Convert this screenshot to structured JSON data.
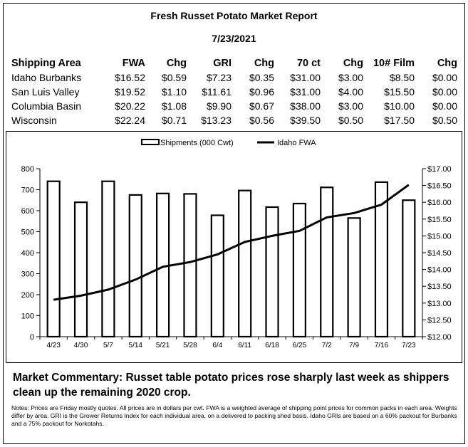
{
  "header": {
    "title": "Fresh Russet Potato Market Report",
    "date": "7/23/2021"
  },
  "price_table": {
    "columns": [
      "Shipping Area",
      "FWA",
      "Chg",
      "GRI",
      "Chg",
      "70 ct",
      "Chg",
      "10# Film",
      "Chg"
    ],
    "rows": [
      [
        "Idaho Burbanks",
        "$16.52",
        "$0.59",
        "$7.23",
        "$0.35",
        "$31.00",
        "$3.00",
        "$8.50",
        "$0.00"
      ],
      [
        "San Luis Valley",
        "$19.52",
        "$1.10",
        "$11.61",
        "$0.96",
        "$31.00",
        "$4.00",
        "$15.50",
        "$0.00"
      ],
      [
        "Columbia Basin",
        "$20.22",
        "$1.08",
        "$9.90",
        "$0.67",
        "$38.00",
        "$3.00",
        "$10.00",
        "$0.00"
      ],
      [
        "Wisconsin",
        "$22.24",
        "$0.71",
        "$13.23",
        "$0.56",
        "$39.50",
        "$0.50",
        "$17.50",
        "$0.50"
      ]
    ]
  },
  "chart_data": {
    "type": "bar+line",
    "categories": [
      "4/23",
      "4/30",
      "5/7",
      "5/14",
      "5/21",
      "5/28",
      "6/4",
      "6/11",
      "6/18",
      "6/25",
      "7/2",
      "7/9",
      "7/16",
      "7/23"
    ],
    "series": [
      {
        "name": "Shipments (000 Cwt)",
        "type": "bar",
        "axis": "left",
        "values": [
          740,
          640,
          740,
          675,
          682,
          680,
          578,
          696,
          617,
          634,
          711,
          565,
          736,
          650
        ]
      },
      {
        "name": "Idaho FWA",
        "type": "line",
        "axis": "right",
        "values": [
          13.1,
          13.22,
          13.4,
          13.7,
          14.08,
          14.22,
          14.45,
          14.82,
          15.0,
          15.15,
          15.55,
          15.68,
          15.93,
          16.52
        ]
      }
    ],
    "y_left": {
      "min": 0,
      "max": 800,
      "step": 100,
      "ticks": [
        "0",
        "100",
        "200",
        "300",
        "400",
        "500",
        "600",
        "700",
        "800"
      ]
    },
    "y_right": {
      "min": 12,
      "max": 17,
      "step": 0.5,
      "ticks": [
        "$12.00",
        "$12.50",
        "$13.00",
        "$13.50",
        "$14.00",
        "$14.50",
        "$15.00",
        "$15.50",
        "$16.00",
        "$16.50",
        "$17.00"
      ]
    },
    "legend_position": "top-center",
    "grid": false,
    "bar_color": "#ffffff",
    "line_color": "#000000"
  },
  "commentary": "Market Commentary: Russet table potato prices rose sharply last week as shippers clean up the remaining 2020 crop.",
  "notes": "Notes: Prices are Friday mostly quotes. All prices are in dollars per cwt. FWA is a weighted average of shipping point prices for  common packs in each area. Weights differ by area. GRI is the Grower Returns Index for each individual area, on a delivered to packing shed basis. Idaho GRIs are based on a 60% packout for Burbanks and a 75% packout for Norkotahs."
}
